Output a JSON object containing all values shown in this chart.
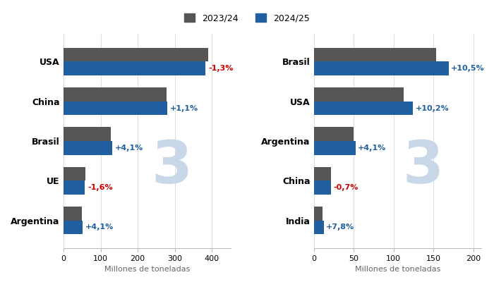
{
  "corn": {
    "categories": [
      "Argentina",
      "UE",
      "Brasil",
      "China",
      "USA"
    ],
    "values_2324": [
      50,
      59,
      127,
      277,
      389
    ],
    "values_2425": [
      52,
      58,
      132,
      280,
      383
    ],
    "pct_labels": [
      "+4,1%",
      "-1,6%",
      "+4,1%",
      "+1,1%",
      "-1,3%"
    ],
    "pct_colors": [
      "#2060a0",
      "#cc0000",
      "#2060a0",
      "#2060a0",
      "#cc0000"
    ],
    "xlim": [
      0,
      450
    ],
    "xticks": [
      0,
      100,
      200,
      300,
      400
    ],
    "xlabel": "Millones de toneladas"
  },
  "soy": {
    "categories": [
      "India",
      "China",
      "Argentina",
      "USA",
      "Brasil"
    ],
    "values_2324": [
      11,
      21,
      50,
      113,
      153
    ],
    "values_2425": [
      12,
      21,
      52,
      124,
      169
    ],
    "pct_labels": [
      "+7,8%",
      "-0,7%",
      "+4,1%",
      "+10,2%",
      "+10,5%"
    ],
    "pct_colors": [
      "#2060a0",
      "#cc0000",
      "#2060a0",
      "#2060a0",
      "#2060a0"
    ],
    "xlim": [
      0,
      210
    ],
    "xticks": [
      0,
      50,
      100,
      150,
      200
    ],
    "xlabel": "Millones de toneladas"
  },
  "color_2324": "#555555",
  "color_2425": "#2060a0",
  "bar_height": 0.35,
  "legend_labels": [
    "2023/24",
    "2024/25"
  ],
  "bg_color": "#ffffff",
  "watermark_color": "#c8d8e8",
  "label_fontsize": 8,
  "tick_fontsize": 8,
  "axis_label_fontsize": 8,
  "cat_label_fontsize": 9
}
